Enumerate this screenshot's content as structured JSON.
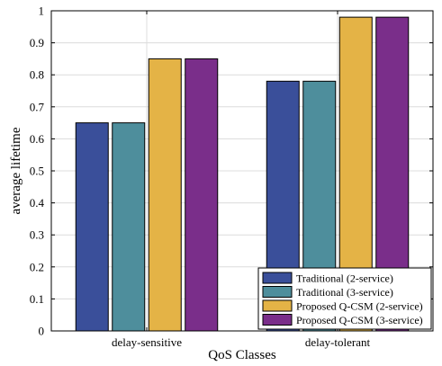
{
  "chart_data": {
    "type": "bar",
    "title": "",
    "xlabel": "QoS Classes",
    "ylabel": "average lifetime",
    "categories": [
      "delay-sensitive",
      "delay-tolerant"
    ],
    "ylim": [
      0,
      1
    ],
    "yticks": [
      0,
      0.1,
      0.2,
      0.3,
      0.4,
      0.5,
      0.6,
      0.7,
      0.8,
      0.9,
      1
    ],
    "ytick_labels": [
      "0",
      "0.1",
      "0.2",
      "0.3",
      "0.4",
      "0.5",
      "0.6",
      "0.7",
      "0.8",
      "0.9",
      "1"
    ],
    "grid": true,
    "legend_position": "bottom-right",
    "series": [
      {
        "name": "Traditional (2-service)",
        "color": "#3a4f9a",
        "values": [
          0.65,
          0.78
        ]
      },
      {
        "name": "Traditional (3-service)",
        "color": "#4e8e9c",
        "values": [
          0.65,
          0.78
        ]
      },
      {
        "name": "Proposed Q-CSM (2-service)",
        "color": "#e4b346",
        "values": [
          0.85,
          0.98
        ]
      },
      {
        "name": "Proposed Q-CSM (3-service)",
        "color": "#7a2e8a",
        "values": [
          0.85,
          0.98
        ]
      }
    ]
  }
}
